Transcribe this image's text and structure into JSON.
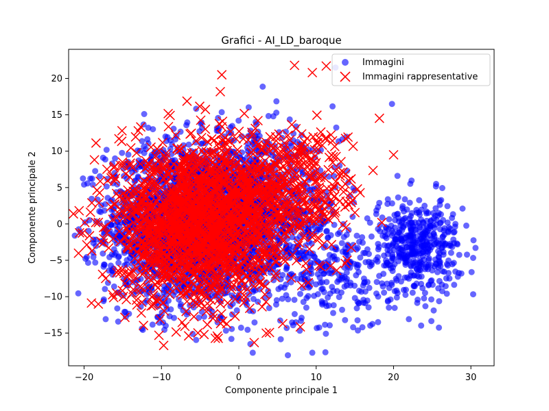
{
  "chart_data": {
    "type": "scatter",
    "title": "Grafici - AI_LD_baroque",
    "xlabel": "Componente principale 1",
    "ylabel": "Componente principale 2",
    "xlim": [
      -22,
      33
    ],
    "ylim": [
      -19.5,
      24
    ],
    "xticks": [
      -20,
      -10,
      0,
      10,
      20,
      30
    ],
    "yticks": [
      -15,
      -10,
      -5,
      0,
      5,
      10,
      15,
      20
    ],
    "grid": false,
    "legend_position": "top-right",
    "series": [
      {
        "name": "Immagini",
        "marker": "circle",
        "color": "#0000ff",
        "clusters": [
          {
            "center": [
              -6,
              0
            ],
            "spread": [
              5.5,
              5.5
            ],
            "count": 2400
          },
          {
            "center": [
              3,
              2
            ],
            "spread": [
              5,
              5
            ],
            "count": 700
          },
          {
            "center": [
              23,
              -3
            ],
            "spread": [
              2.8,
              3.2
            ],
            "count": 450
          },
          {
            "center": [
              12,
              -7
            ],
            "spread": [
              4,
              4
            ],
            "count": 250
          }
        ],
        "points": [
          [
            30.6,
            -3.3
          ],
          [
            19.8,
            16.5
          ],
          [
            9.5,
            -17.7
          ],
          [
            1.8,
            -17.7
          ],
          [
            -16.2,
            1.2
          ],
          [
            12.5,
            21.5
          ],
          [
            25.5,
            5.5
          ],
          [
            18,
            -13.5
          ],
          [
            28,
            0
          ]
        ]
      },
      {
        "name": "Immagini rappresentative",
        "marker": "x",
        "color": "#ff0000",
        "clusters": [
          {
            "center": [
              -6,
              0
            ],
            "spread": [
              5,
              5.5
            ],
            "count": 1600
          },
          {
            "center": [
              3,
              3
            ],
            "spread": [
              5,
              5
            ],
            "count": 500
          },
          {
            "center": [
              10,
              6
            ],
            "spread": [
              3.5,
              4
            ],
            "count": 120
          }
        ],
        "points": [
          [
            -19,
            2.9
          ],
          [
            -18.5,
            0.2
          ],
          [
            -2.2,
            20.5
          ],
          [
            7.2,
            21.8
          ],
          [
            11.3,
            21.7
          ],
          [
            20,
            9.5
          ],
          [
            18.5,
            0.2
          ],
          [
            14,
            -5
          ],
          [
            -4.5,
            -15.2
          ],
          [
            -13,
            12.8
          ],
          [
            9.5,
            20.8
          ],
          [
            -15.5,
            11.7
          ]
        ]
      }
    ]
  }
}
